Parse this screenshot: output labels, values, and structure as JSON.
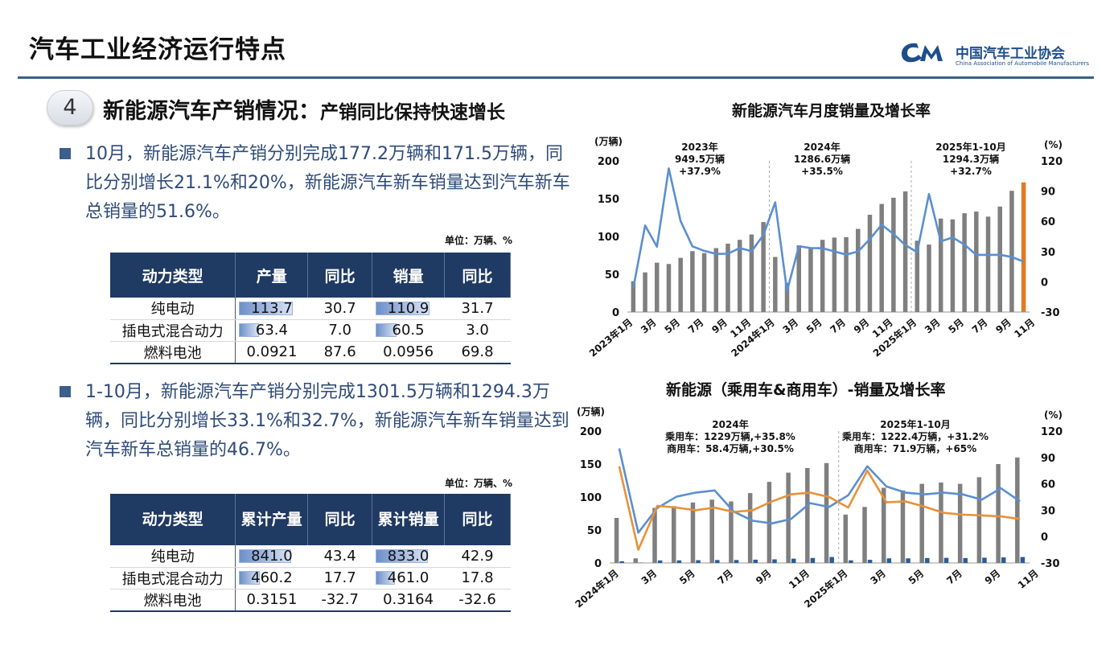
{
  "slide": {
    "title": "汽车工业经济运行特点"
  },
  "logo": {
    "name": "中国汽车工业协会",
    "name_en": "China Association of Automobile Manufacturers",
    "color": "#1f4e8c"
  },
  "section": {
    "number": "4",
    "title": "新能源汽车产销情况：",
    "subtitle": "产销同比保持快速增长"
  },
  "bullets": [
    {
      "text": "10月，新能源汽车产销分别完成177.2万辆和171.5万辆，同比分别增长21.1%和20%，新能源汽车新车销量达到汽车新车总销量的51.6%。"
    },
    {
      "text": "1-10月，新能源汽车产销分别完成1301.5万辆和1294.3万辆，同比分别增长33.1%和32.7%，新能源汽车新车销量达到汽车新车总销量的46.7%。"
    }
  ],
  "table1": {
    "unit": "单位：万辆、%",
    "headers": [
      "动力类型",
      "产量",
      "同比",
      "销量",
      "同比"
    ],
    "rows": [
      {
        "type": "纯电动",
        "production": "113.7",
        "prod_yoy": "30.7",
        "sales": "110.9",
        "sales_yoy": "31.7",
        "prod_fill": 0.82,
        "sales_fill": 0.82
      },
      {
        "type": "插电式混合动力",
        "production": "63.4",
        "prod_yoy": "7.0",
        "sales": "60.5",
        "sales_yoy": "3.0",
        "prod_fill": 0.3,
        "sales_fill": 0.32
      },
      {
        "type": "燃料电池",
        "production": "0.0921",
        "prod_yoy": "87.6",
        "sales": "0.0956",
        "sales_yoy": "69.8",
        "prod_fill": 0,
        "sales_fill": 0
      }
    ]
  },
  "table2": {
    "unit": "单位：万辆、%",
    "headers": [
      "动力类型",
      "累计产量",
      "同比",
      "累计销量",
      "同比"
    ],
    "rows": [
      {
        "type": "纯电动",
        "production": "841.0",
        "prod_yoy": "43.4",
        "sales": "833.0",
        "sales_yoy": "42.9",
        "prod_fill": 0.8,
        "sales_fill": 0.8
      },
      {
        "type": "插电式混合动力",
        "production": "460.2",
        "prod_yoy": "17.7",
        "sales": "461.0",
        "sales_yoy": "17.8",
        "prod_fill": 0.32,
        "sales_fill": 0.3
      },
      {
        "type": "燃料电池",
        "production": "0.3151",
        "prod_yoy": "-32.7",
        "sales": "0.3164",
        "sales_yoy": "-32.6",
        "prod_fill": 0,
        "sales_fill": 0
      }
    ]
  },
  "colors": {
    "bar": "#7f7f7f",
    "line1": "#5b8fd0",
    "line2": "#e8913a",
    "highlight": "#e07b20",
    "header": "#1f3a63",
    "accent": "#3b5e8a"
  },
  "chart_data": [
    {
      "type": "bar",
      "title": "新能源汽车月度销量及增长率",
      "ylabel_left": "(万辆)",
      "ylabel_right": "(%)",
      "ylim_left": [
        0,
        200
      ],
      "yticks_left": [
        "0",
        "50",
        "100",
        "150",
        "200"
      ],
      "ylim_right": [
        -30,
        120
      ],
      "yticks_right": [
        "-30",
        "0",
        "30",
        "60",
        "90",
        "120"
      ],
      "x_tick_labels": [
        "2023年1月",
        "3月",
        "5月",
        "7月",
        "9月",
        "11月",
        "2024年1月",
        "3月",
        "5月",
        "7月",
        "9月",
        "11月",
        "2025年1月",
        "3月",
        "5月",
        "7月",
        "9月",
        "11月"
      ],
      "series": [
        {
          "name": "销量",
          "axis": "left",
          "values": [
            40.8,
            52.5,
            65.3,
            63.6,
            71.7,
            80.6,
            78.0,
            84.6,
            90.4,
            95.5,
            102.6,
            119.1,
            72.9,
            38.8,
            88.3,
            85.0,
            95.5,
            98.5,
            99.1,
            110.0,
            128.7,
            143.0,
            151.2,
            159.6,
            94.4,
            89.2,
            123.7,
            122.6,
            130.7,
            132.9,
            126.2,
            139.5,
            160.4,
            171.5
          ]
        },
        {
          "name": "增长率",
          "axis": "right",
          "values": [
            -6.3,
            55.9,
            34.8,
            112.5,
            60.2,
            35.2,
            30.7,
            27.7,
            27.9,
            33.5,
            30.3,
            46.4,
            78.8,
            -9.2,
            35.3,
            33.5,
            33.3,
            30.1,
            27.0,
            30.0,
            42.3,
            56.7,
            47.4,
            36.5,
            29.4,
            87.1,
            40.1,
            44.0,
            36.9,
            26.7,
            26.7,
            26.8,
            24.6,
            20.0
          ]
        }
      ],
      "annotations": [
        {
          "label": "2023年",
          "line2": "949.5万辆",
          "line3": "+37.9%"
        },
        {
          "label": "2024年",
          "line2": "1286.6万辆",
          "line3": "+35.5%"
        },
        {
          "label": "2025年1-10月",
          "line2": "1294.3万辆",
          "line3": "+32.7%"
        }
      ]
    },
    {
      "type": "bar",
      "title": "新能源（乘用车&商用车）-销量及增长率",
      "ylabel_left": "(万辆)",
      "ylabel_right": "(%)",
      "ylim_left": [
        0,
        200
      ],
      "yticks_left": [
        "0",
        "50",
        "100",
        "150",
        "200"
      ],
      "ylim_right": [
        -30,
        120
      ],
      "yticks_right": [
        "-30",
        "0",
        "30",
        "60",
        "90",
        "120"
      ],
      "x_tick_labels": [
        "2024年1月",
        "3月",
        "5月",
        "7月",
        "9月",
        "11月",
        "2025年1月",
        "3月",
        "5月",
        "7月",
        "9月",
        "11月"
      ],
      "series": [
        {
          "name": "乘用车销量",
          "axis": "left",
          "values": [
            68.3,
            7.0,
            83.5,
            86.2,
            91.7,
            96.0,
            93.3,
            106.0,
            123.0,
            137.0,
            144.0,
            151.5,
            73.4,
            85.0,
            114.0,
            110.0,
            120.0,
            122.0,
            120.0,
            130.0,
            150.0,
            160.0
          ]
        },
        {
          "name": "商用车销量",
          "axis": "left",
          "values": [
            2.6,
            0.5,
            3.9,
            4.0,
            4.2,
            4.5,
            4.5,
            5.0,
            5.5,
            6.5,
            7.6,
            9.0,
            4.0,
            4.8,
            7.0,
            7.0,
            7.5,
            7.8,
            7.5,
            8.0,
            8.5,
            9.0
          ]
        },
        {
          "name": "乘用车增长率",
          "axis": "right",
          "values": [
            100.3,
            4.5,
            32.6,
            45.4,
            50.0,
            52.5,
            28.4,
            18.0,
            15.0,
            20.0,
            38.0,
            33.7,
            47.0,
            80.0,
            57.0,
            50.0,
            48.0,
            50.0,
            48.0,
            42.0,
            55.0,
            40.0
          ]
        },
        {
          "name": "商用车增长率",
          "axis": "right",
          "values": [
            80.0,
            -15.0,
            35.0,
            33.0,
            30.0,
            33.0,
            28.0,
            30.0,
            40.0,
            48.0,
            50.0,
            45.0,
            33.0,
            75.0,
            39.0,
            40.0,
            34.0,
            27.0,
            25.0,
            24.0,
            23.0,
            20.0
          ]
        }
      ],
      "annotations": [
        {
          "label": "2024年",
          "line2": "乘用车：1229万辆,+35.8%",
          "line3": "商用车：58.4万辆,+30.5%"
        },
        {
          "label": "2025年1-10月",
          "line2": "乘用车：1222.4万辆，+31.2%",
          "line3": "商用车：71.9万辆，+65%"
        }
      ]
    }
  ]
}
